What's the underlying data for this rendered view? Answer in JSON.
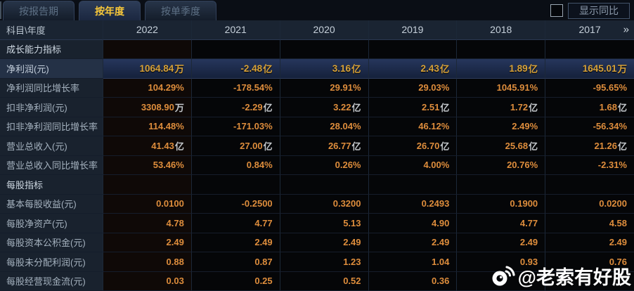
{
  "tabs": [
    {
      "label": "按报告期",
      "active": false
    },
    {
      "label": "按年度",
      "active": true
    },
    {
      "label": "按单季度",
      "active": false
    }
  ],
  "controls": {
    "show_yoy_label": "显示同比",
    "yoy_checked": false
  },
  "table": {
    "corner_header": "科目\\年度",
    "years": [
      "2022",
      "2021",
      "2020",
      "2019",
      "2018",
      "2017"
    ],
    "more_icon": "»",
    "rows": [
      {
        "type": "section",
        "label": "成长能力指标",
        "values": [
          "",
          "",
          "",
          "",
          "",
          ""
        ]
      },
      {
        "type": "data",
        "highlight": true,
        "label": "净利润(元)",
        "values": [
          "1064.84万",
          "-2.48亿",
          "3.16亿",
          "2.43亿",
          "1.89亿",
          "1645.01万"
        ]
      },
      {
        "type": "data",
        "label": "净利润同比增长率",
        "values": [
          "104.29%",
          "-178.54%",
          "29.91%",
          "29.03%",
          "1045.91%",
          "-95.65%"
        ]
      },
      {
        "type": "data",
        "label": "扣非净利润(元)",
        "values": [
          "3308.90万",
          "-2.29亿",
          "3.22亿",
          "2.51亿",
          "1.72亿",
          "1.68亿"
        ]
      },
      {
        "type": "data",
        "label": "扣非净利润同比增长率",
        "values": [
          "114.48%",
          "-171.03%",
          "28.04%",
          "46.12%",
          "2.49%",
          "-56.34%"
        ]
      },
      {
        "type": "data",
        "label": "营业总收入(元)",
        "values": [
          "41.43亿",
          "27.00亿",
          "26.77亿",
          "26.70亿",
          "25.68亿",
          "21.26亿"
        ]
      },
      {
        "type": "data",
        "label": "营业总收入同比增长率",
        "values": [
          "53.46%",
          "0.84%",
          "0.26%",
          "4.00%",
          "20.76%",
          "-2.31%"
        ]
      },
      {
        "type": "section",
        "label": "每股指标",
        "values": [
          "",
          "",
          "",
          "",
          "",
          ""
        ]
      },
      {
        "type": "data",
        "label": "基本每股收益(元)",
        "values": [
          "0.0100",
          "-0.2500",
          "0.3200",
          "0.2493",
          "0.1900",
          "0.0200"
        ]
      },
      {
        "type": "data",
        "label": "每股净资产(元)",
        "values": [
          "4.78",
          "4.77",
          "5.13",
          "4.90",
          "4.77",
          "4.58"
        ]
      },
      {
        "type": "data",
        "label": "每股资本公积金(元)",
        "values": [
          "2.49",
          "2.49",
          "2.49",
          "2.49",
          "2.49",
          "2.49"
        ]
      },
      {
        "type": "data",
        "label": "每股未分配利润(元)",
        "values": [
          "0.88",
          "0.87",
          "1.23",
          "1.04",
          "0.93",
          "0.76"
        ]
      },
      {
        "type": "data",
        "label": "每股经营现金流(元)",
        "values": [
          "0.03",
          "0.25",
          "0.52",
          "0.36",
          "",
          ""
        ]
      }
    ]
  },
  "watermark": {
    "icon": "weibo-icon",
    "text": "@老索有好股"
  },
  "colors": {
    "active_tab_text": "#f8c83a",
    "value_orange": "#de8d3c",
    "highlight_gold": "#d7a23a",
    "highlight_row_bg": "#1c2a48",
    "label_column_bg": "#19222e",
    "header_row_bg": "#1a2432",
    "watermark_text": "#ffffff"
  }
}
